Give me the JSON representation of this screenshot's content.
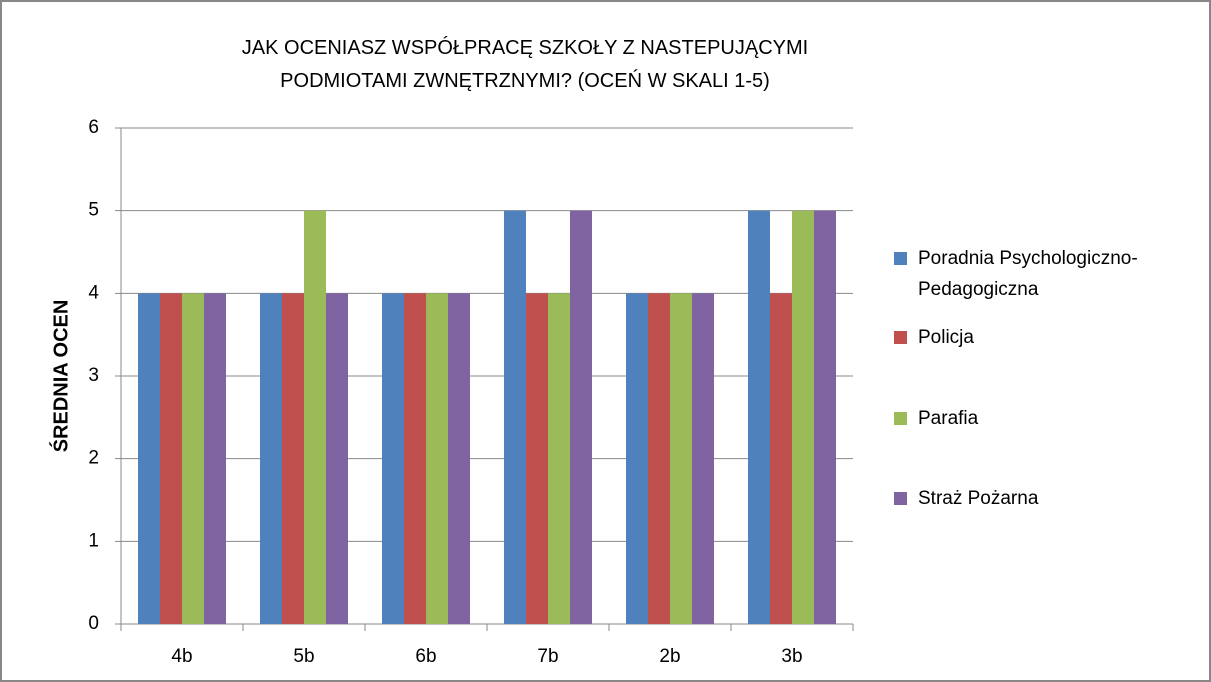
{
  "chart_data": {
    "type": "bar",
    "title": "JAK OCENIASZ WSPÓŁPRACĘ SZKOŁY Z NASTEPUJĄCYMI PODMIOTAMI ZWNĘTRZNYMI? (OCEŃ W SKALI 1-5)",
    "y_label": "ŚREDNIA OCEN",
    "categories": [
      "4b",
      "5b",
      "6b",
      "7b",
      "2b",
      "3b"
    ],
    "series": [
      {
        "name": "Poradnia Psychologiczno-Pedagogiczna",
        "color": "#4f81bd",
        "values": [
          4,
          4,
          4,
          5,
          4,
          5
        ]
      },
      {
        "name": "Policja",
        "color": "#c0504d",
        "values": [
          4,
          4,
          4,
          4,
          4,
          4
        ]
      },
      {
        "name": "Parafia",
        "color": "#9bbb59",
        "values": [
          4,
          5,
          4,
          4,
          4,
          5
        ]
      },
      {
        "name": "Straż Pożarna",
        "color": "#8064a2",
        "values": [
          4,
          4,
          4,
          5,
          4,
          5
        ]
      }
    ],
    "ylim": [
      0,
      6
    ],
    "yticks": [
      0,
      1,
      2,
      3,
      4,
      5,
      6
    ],
    "grid": true,
    "legend": "right"
  }
}
